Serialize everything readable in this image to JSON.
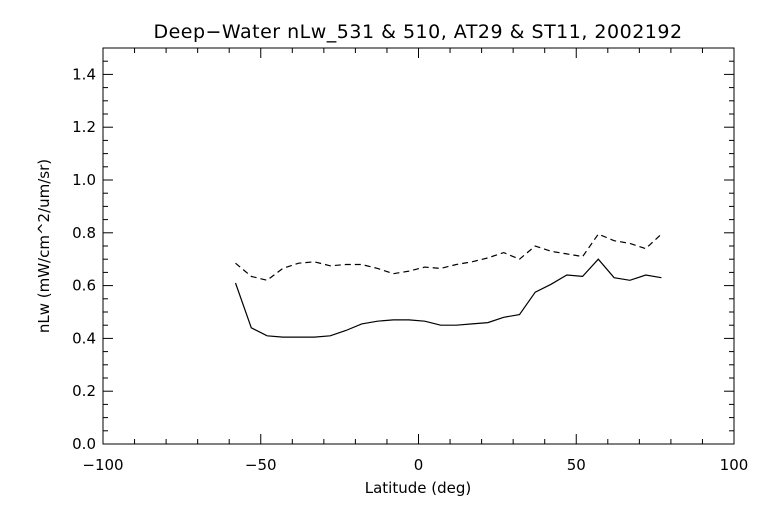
{
  "chart_data": {
    "type": "line",
    "title": "Deep−Water nLw_531 & 510, AT29 & ST11, 2002192",
    "xlabel": "Latitude (deg)",
    "ylabel": "nLw (mW/cm^2/um/sr)",
    "xlim": [
      -100,
      100
    ],
    "ylim": [
      0.0,
      1.5
    ],
    "xticks": [
      -100,
      -50,
      0,
      50,
      100
    ],
    "xtick_labels": [
      "−100",
      "−50",
      "0",
      "50",
      "100"
    ],
    "yticks": [
      0.0,
      0.2,
      0.4,
      0.6,
      0.8,
      1.0,
      1.2,
      1.4
    ],
    "ytick_labels": [
      "0.0",
      "0.2",
      "0.4",
      "0.6",
      "0.8",
      "1.0",
      "1.2",
      "1.4"
    ],
    "grid": false,
    "legend": "none",
    "series": [
      {
        "style": "solid",
        "x": [
          -58,
          -53,
          -48,
          -43,
          -38,
          -33,
          -28,
          -23,
          -18,
          -13,
          -8,
          -3,
          2,
          7,
          12,
          17,
          22,
          27,
          32,
          37,
          42,
          47,
          52,
          57,
          62,
          67,
          72,
          77
        ],
        "y": [
          0.61,
          0.44,
          0.41,
          0.405,
          0.405,
          0.405,
          0.41,
          0.43,
          0.455,
          0.465,
          0.47,
          0.47,
          0.465,
          0.45,
          0.45,
          0.455,
          0.46,
          0.48,
          0.49,
          0.575,
          0.605,
          0.64,
          0.635,
          0.7,
          0.63,
          0.62,
          0.64,
          0.63
        ]
      },
      {
        "style": "dashed",
        "x": [
          -58,
          -53,
          -48,
          -43,
          -38,
          -33,
          -28,
          -23,
          -18,
          -13,
          -8,
          -3,
          2,
          7,
          12,
          17,
          22,
          27,
          32,
          37,
          42,
          47,
          52,
          57,
          62,
          67,
          72,
          77
        ],
        "y": [
          0.685,
          0.635,
          0.62,
          0.665,
          0.685,
          0.69,
          0.675,
          0.68,
          0.68,
          0.665,
          0.645,
          0.655,
          0.67,
          0.665,
          0.68,
          0.69,
          0.705,
          0.725,
          0.7,
          0.75,
          0.73,
          0.72,
          0.71,
          0.795,
          0.77,
          0.76,
          0.74,
          0.795
        ]
      }
    ]
  }
}
